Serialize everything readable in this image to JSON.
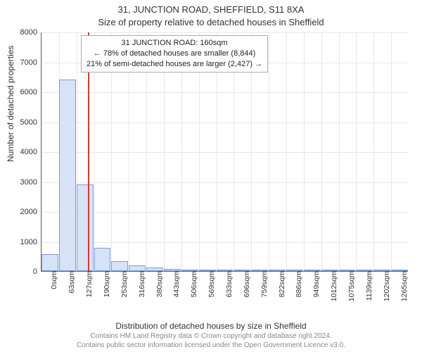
{
  "address_line": "31, JUNCTION ROAD, SHEFFIELD, S11 8XA",
  "subtitle": "Size of property relative to detached houses in Sheffield",
  "ylabel": "Number of detached properties",
  "xlabel": "Distribution of detached houses by size in Sheffield",
  "histogram": {
    "type": "histogram",
    "x_categories": [
      "0sqm",
      "63sqm",
      "127sqm",
      "190sqm",
      "253sqm",
      "316sqm",
      "380sqm",
      "443sqm",
      "506sqm",
      "569sqm",
      "633sqm",
      "696sqm",
      "759sqm",
      "822sqm",
      "886sqm",
      "949sqm",
      "1012sqm",
      "1075sqm",
      "1139sqm",
      "1202sqm",
      "1265sqm"
    ],
    "values": [
      560,
      6400,
      2900,
      780,
      340,
      190,
      110,
      70,
      50,
      30,
      20,
      15,
      12,
      10,
      8,
      6,
      5,
      4,
      3,
      2,
      2
    ],
    "ylim": [
      0,
      8000
    ],
    "ytick_step": 1000,
    "bar_fill": "#d6e2f5",
    "bar_stroke": "#7a9dd4",
    "grid_color": "#e8e8e8",
    "background": "#ffffff",
    "axis_color": "#666666",
    "tick_fontsize": 11,
    "label_fontsize": 12
  },
  "marker": {
    "position_sqm": 160,
    "x_max_sqm": 1265,
    "line_color": "#d43a2f"
  },
  "annotation": {
    "line1": "31 JUNCTION ROAD: 160sqm",
    "line2": "← 78% of detached houses are smaller (8,844)",
    "line3": "21% of semi-detached houses are larger (2,427) →",
    "border_color": "#aaaaaa",
    "fontsize": 11
  },
  "credit": {
    "line1": "Contains HM Land Registry data © Crown copyright and database right 2024.",
    "line2": "Contains public sector information licensed under the Open Government Licence v3.0."
  }
}
